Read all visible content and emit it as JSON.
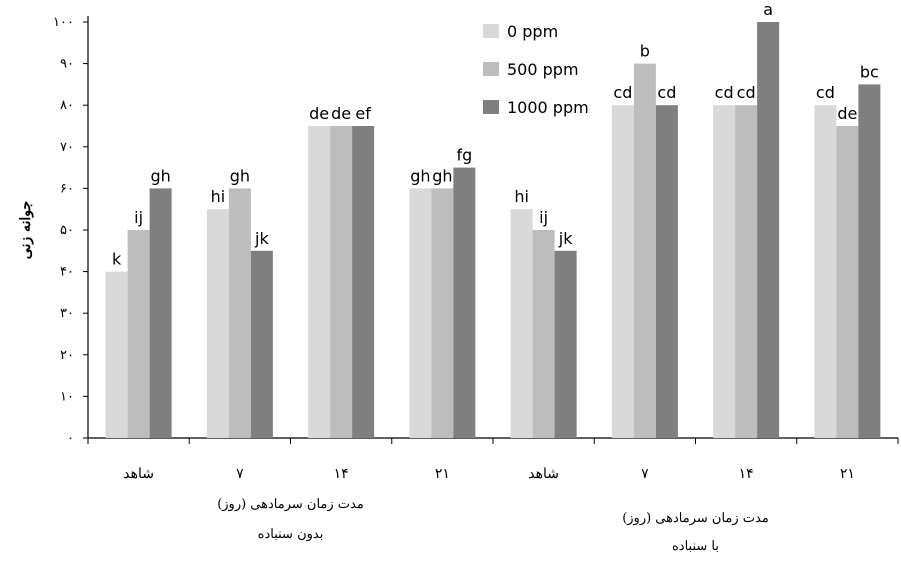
{
  "chart_data": {
    "type": "bar",
    "ylabel": "جوانه زنی",
    "ylim": [
      0,
      100
    ],
    "yticks": [
      "۰",
      "۱۰",
      "۲۰",
      "۳۰",
      "۴۰",
      "۵۰",
      "۶۰",
      "۷۰",
      "۸۰",
      "۹۰",
      "۱۰۰"
    ],
    "categories": [
      "شاهد",
      "۷",
      "۱۴",
      "۲۱",
      "شاهد",
      "۷",
      "۱۴",
      "۲۱"
    ],
    "series": [
      {
        "name": "0 ppm",
        "color": "#d9d9d9",
        "values": [
          40,
          55,
          75,
          60,
          55,
          80,
          80,
          80
        ],
        "labels": [
          "k",
          "hi",
          "de",
          "gh",
          "hi",
          "cd",
          "cd",
          "cd"
        ]
      },
      {
        "name": "500 ppm",
        "color": "#bdbdbd",
        "values": [
          50,
          60,
          75,
          60,
          50,
          90,
          80,
          75
        ],
        "labels": [
          "ij",
          "gh",
          "de",
          "gh",
          "ij",
          "b",
          "cd",
          "de"
        ]
      },
      {
        "name": "1000 ppm",
        "color": "#7f7f7f",
        "values": [
          60,
          45,
          75,
          65,
          45,
          80,
          100,
          85
        ],
        "labels": [
          "gh",
          "jk",
          "ef",
          "fg",
          "jk",
          "cd",
          "a",
          "bc"
        ]
      }
    ],
    "group_labels": [
      {
        "lines": [
          "مدت زمان سرمادهی (روز)",
          "بدون سنباده"
        ]
      },
      {
        "lines": [
          "مدت زمان سرمادهی (روز)",
          "با سنباده"
        ]
      }
    ],
    "legend_position": "top-right",
    "grid": false
  }
}
